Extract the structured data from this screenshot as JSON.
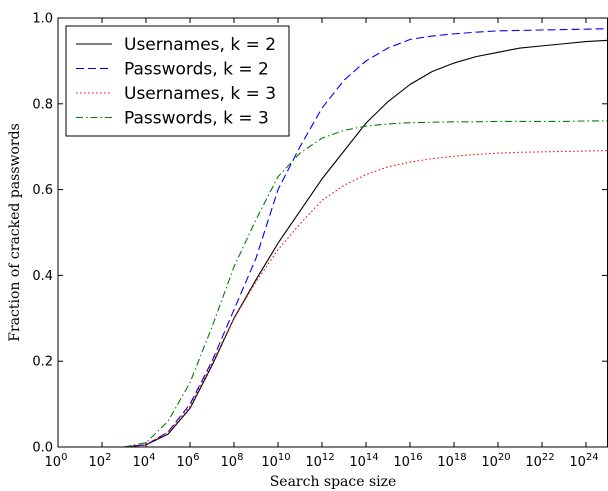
{
  "chart_data": {
    "type": "line",
    "xlabel": "Search space size",
    "ylabel": "Fraction of cracked passwords",
    "x_scale": "log",
    "x_base": 10,
    "xlim": [
      1,
      1e+25
    ],
    "ylim": [
      0,
      1
    ],
    "x_ticks": [
      {
        "base": "10",
        "exp": "0"
      },
      {
        "base": "10",
        "exp": "2"
      },
      {
        "base": "10",
        "exp": "4"
      },
      {
        "base": "10",
        "exp": "6"
      },
      {
        "base": "10",
        "exp": "8"
      },
      {
        "base": "10",
        "exp": "10"
      },
      {
        "base": "10",
        "exp": "12"
      },
      {
        "base": "10",
        "exp": "14"
      },
      {
        "base": "10",
        "exp": "16"
      },
      {
        "base": "10",
        "exp": "18"
      },
      {
        "base": "10",
        "exp": "20"
      },
      {
        "base": "10",
        "exp": "22"
      },
      {
        "base": "10",
        "exp": "24"
      }
    ],
    "y_ticks": [
      "0.0",
      "0.2",
      "0.4",
      "0.6",
      "0.8",
      "1.0"
    ],
    "grid": false,
    "legend_position": "top-left",
    "series": [
      {
        "name": "Usernames, k = 2",
        "color": "#000000",
        "dash": "solid",
        "x": [
          1000,
          10000,
          100000,
          1000000,
          10000000,
          100000000,
          1000000000,
          10000000000,
          100000000000,
          1000000000000,
          10000000000000,
          100000000000000,
          1000000000000000.0,
          1e+16,
          1e+17,
          1e+18,
          1e+19,
          1e+20,
          1e+21,
          1e+22,
          1e+23,
          1e+24,
          1e+25
        ],
        "y": [
          0.0,
          0.005,
          0.03,
          0.09,
          0.19,
          0.3,
          0.39,
          0.475,
          0.55,
          0.625,
          0.69,
          0.755,
          0.805,
          0.845,
          0.875,
          0.895,
          0.91,
          0.92,
          0.93,
          0.935,
          0.94,
          0.945,
          0.948
        ]
      },
      {
        "name": "Passwords, k = 2",
        "color": "#0000ff",
        "dash": "dashed",
        "x": [
          1000,
          10000,
          100000,
          1000000,
          10000000,
          100000000,
          1000000000,
          10000000000,
          100000000000,
          1000000000000,
          10000000000000,
          100000000000000,
          1000000000000000.0,
          1e+16,
          1e+17,
          1e+18,
          1e+19,
          1e+20,
          1e+21,
          1e+22,
          1e+23,
          1e+24,
          1e+25
        ],
        "y": [
          0.0,
          0.005,
          0.035,
          0.1,
          0.2,
          0.32,
          0.44,
          0.6,
          0.7,
          0.79,
          0.855,
          0.9,
          0.93,
          0.95,
          0.958,
          0.963,
          0.967,
          0.97,
          0.971,
          0.972,
          0.973,
          0.974,
          0.975
        ]
      },
      {
        "name": "Usernames, k = 3",
        "color": "#ff0000",
        "dash": "dotted",
        "x": [
          1000,
          10000,
          100000,
          1000000,
          10000000,
          100000000,
          1000000000,
          10000000000,
          100000000000,
          1000000000000,
          10000000000000,
          100000000000000,
          1000000000000000.0,
          1e+16,
          1e+17,
          1e+18,
          1e+19,
          1e+20,
          1e+21,
          1e+22,
          1e+23,
          1e+24,
          1e+25
        ],
        "y": [
          0.0,
          0.005,
          0.035,
          0.095,
          0.195,
          0.3,
          0.385,
          0.46,
          0.52,
          0.575,
          0.61,
          0.635,
          0.653,
          0.664,
          0.672,
          0.678,
          0.682,
          0.685,
          0.687,
          0.688,
          0.689,
          0.69,
          0.691
        ]
      },
      {
        "name": "Passwords, k = 3",
        "color": "#008000",
        "dash": "dashdot",
        "x": [
          1000,
          10000,
          100000,
          1000000,
          10000000,
          100000000,
          1000000000,
          10000000000,
          100000000000,
          1000000000000,
          10000000000000,
          100000000000000,
          1000000000000000.0,
          1e+16,
          1e+17,
          1e+18,
          1e+19,
          1e+20,
          1e+21,
          1e+22,
          1e+23,
          1e+24,
          1e+25
        ],
        "y": [
          0.0,
          0.01,
          0.06,
          0.15,
          0.28,
          0.42,
          0.53,
          0.63,
          0.685,
          0.72,
          0.738,
          0.748,
          0.753,
          0.756,
          0.757,
          0.758,
          0.758,
          0.759,
          0.759,
          0.759,
          0.759,
          0.76,
          0.76
        ]
      }
    ]
  }
}
